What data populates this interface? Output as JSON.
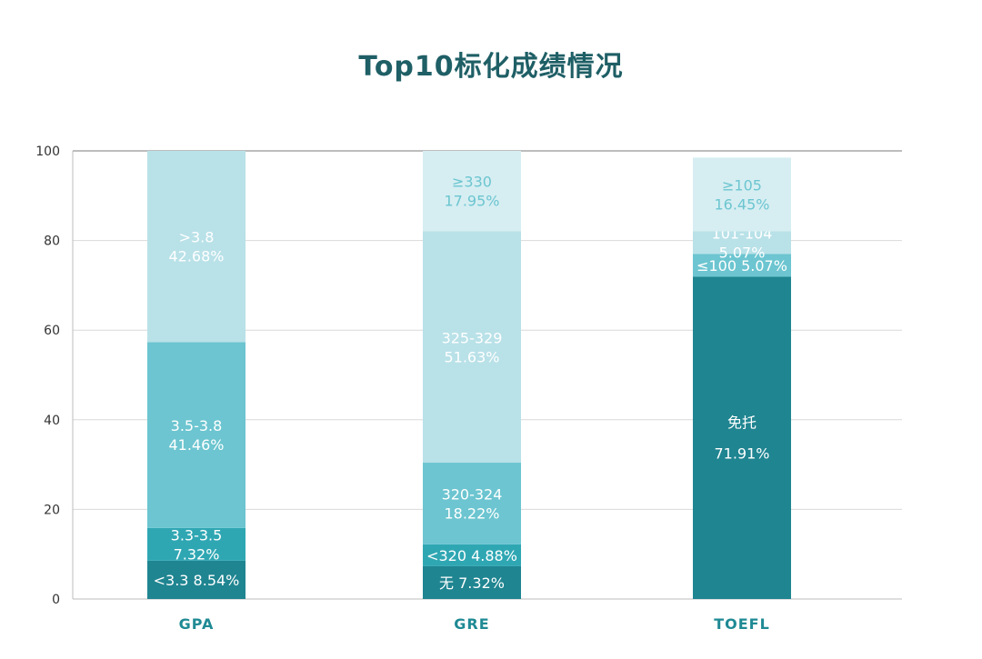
{
  "chart_data": {
    "type": "bar",
    "stacked": true,
    "title": "Top10标化成绩情况",
    "xlabel": "",
    "ylabel": "",
    "ylim": [
      0,
      100
    ],
    "yticks": [
      0,
      20,
      40,
      60,
      80,
      100
    ],
    "grid": true,
    "legend": "none",
    "categories": [
      "GPA",
      "GRE",
      "TOEFL"
    ],
    "stacks": [
      {
        "category": "GPA",
        "segments": [
          {
            "lines": [
              "<3.3 8.54%"
            ],
            "value": 8.54
          },
          {
            "lines": [
              "3.3-3.5",
              "7.32%"
            ],
            "value": 7.32
          },
          {
            "lines": [
              "3.5-3.8",
              "41.46%"
            ],
            "value": 41.46
          },
          {
            "lines": [
              ">3.8",
              "42.68%"
            ],
            "value": 42.68
          }
        ]
      },
      {
        "category": "GRE",
        "segments": [
          {
            "lines": [
              "无 7.32%"
            ],
            "value": 7.32
          },
          {
            "lines": [
              "<320 4.88%"
            ],
            "value": 4.88
          },
          {
            "lines": [
              "320-324",
              "18.22%"
            ],
            "value": 18.22
          },
          {
            "lines": [
              "325-329",
              "51.63%"
            ],
            "value": 51.63
          },
          {
            "lines": [
              "≥330",
              "17.95%"
            ],
            "value": 17.95
          }
        ]
      },
      {
        "category": "TOEFL",
        "segments": [
          {
            "lines": [
              "免托",
              "71.91%"
            ],
            "value": 71.91
          },
          {
            "lines": [
              "≤100 5.07%"
            ],
            "value": 5.07
          },
          {
            "lines": [
              "101-104",
              "5.07%"
            ],
            "value": 5.07
          },
          {
            "lines": [
              "≥105",
              "16.45%"
            ],
            "value": 16.45
          }
        ]
      }
    ],
    "palette": [
      "#1f8591",
      "#2fa7b3",
      "#6cc5d0",
      "#b9e1e8",
      "#d6eef2"
    ],
    "label_colors": [
      "#ffffff",
      "#ffffff",
      "#ffffff",
      "#ffffff",
      "#6cc5d0"
    ]
  }
}
